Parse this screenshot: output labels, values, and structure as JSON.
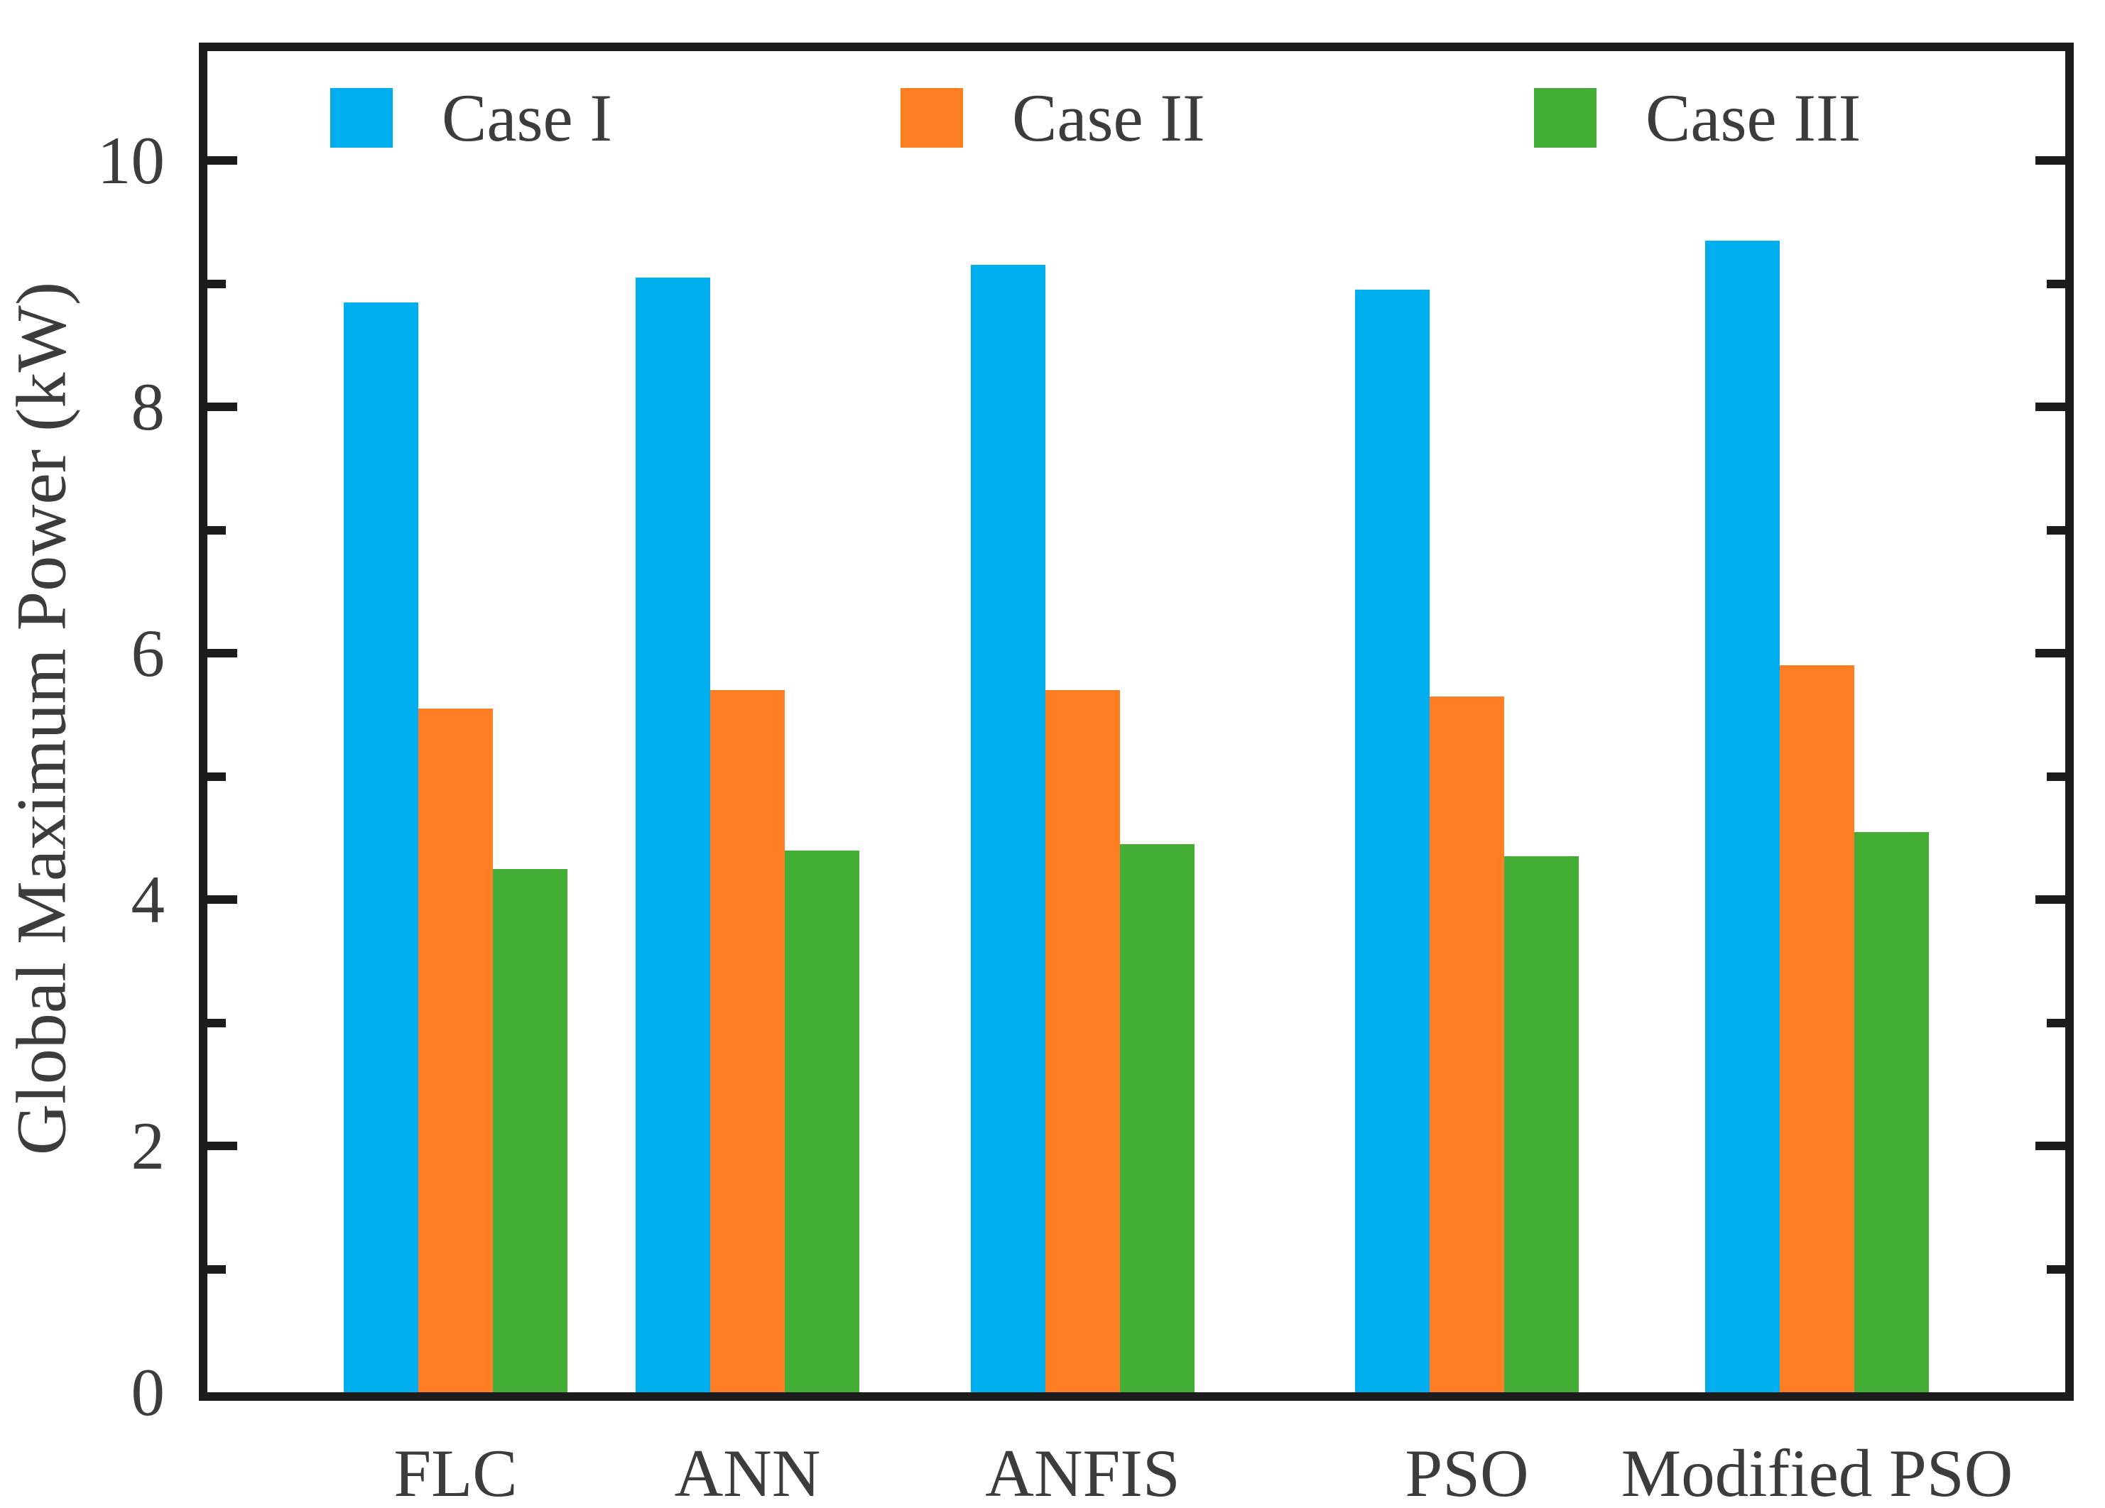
{
  "chart_data": {
    "type": "bar",
    "title": "",
    "categories": [
      "FLC",
      "ANN",
      "ANFIS",
      "PSO",
      "Modified PSO"
    ],
    "series": [
      {
        "name": "Case I",
        "color": "#00AEEF",
        "values": [
          8.85,
          9.05,
          9.15,
          8.95,
          9.35
        ]
      },
      {
        "name": "Case II",
        "color": "#FD7E23",
        "values": [
          5.55,
          5.7,
          5.7,
          5.65,
          5.9
        ]
      },
      {
        "name": "Case III",
        "color": "#44AD35",
        "values": [
          4.25,
          4.4,
          4.45,
          4.35,
          4.55
        ]
      }
    ],
    "xlabel": "",
    "ylabel": "Global Maximum Power (kW)",
    "ylim": [
      0,
      11
    ],
    "yticks": [
      0,
      2,
      4,
      6,
      8,
      10
    ],
    "ytick_labels": [
      "0",
      "2",
      "4",
      "6",
      "8",
      "10"
    ],
    "minor_yticks": [
      1,
      3,
      5,
      7,
      9
    ],
    "grid": false,
    "legend_position": "top-inside",
    "frame": "full-box-with-inward-ticks",
    "colors": {
      "axis": "#1c1c1c",
      "text": "#3c3c3c",
      "background": "#ffffff"
    }
  }
}
